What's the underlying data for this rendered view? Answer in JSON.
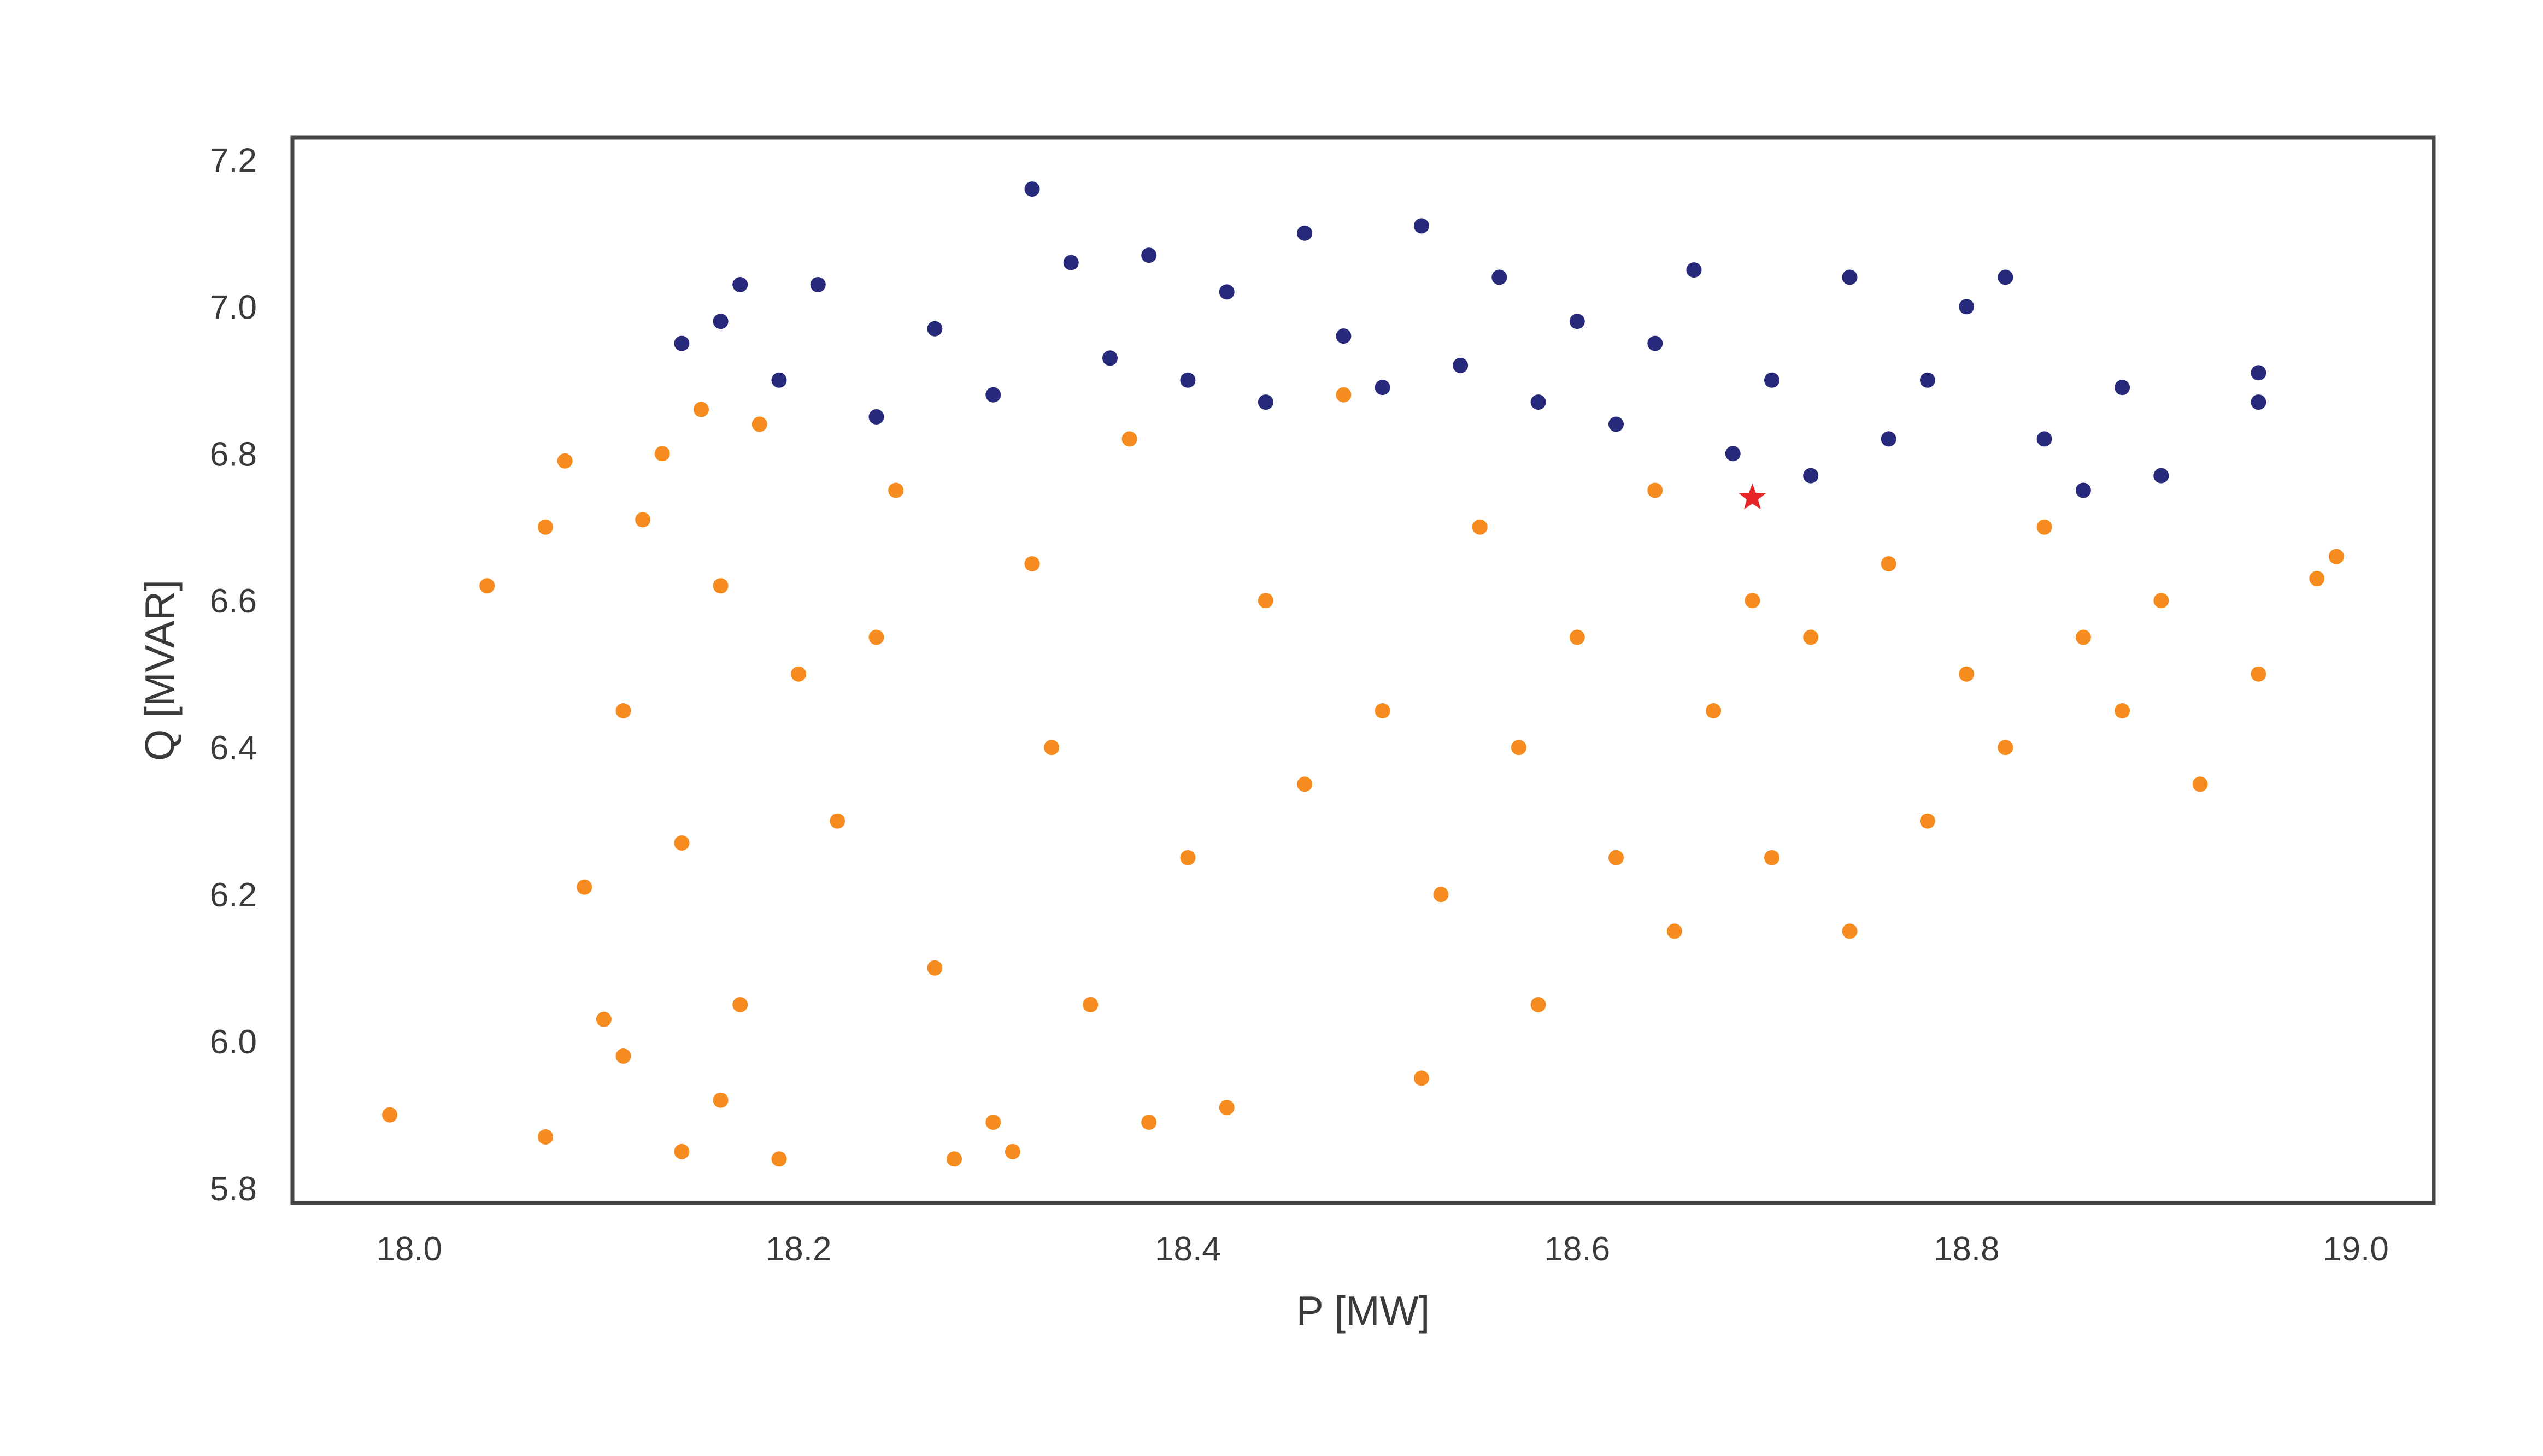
{
  "chart_data": {
    "type": "scatter",
    "title": "",
    "xlabel": "P [MW]",
    "ylabel": "Q [MVAR]",
    "xlim": [
      17.94,
      19.04
    ],
    "ylim": [
      5.78,
      7.23
    ],
    "grid": false,
    "legend": "none",
    "x_ticks": [
      18.0,
      18.2,
      18.4,
      18.6,
      18.8,
      19.0
    ],
    "x_tick_labels": [
      "18.0",
      "18.2",
      "18.4",
      "18.6",
      "18.8",
      "19.0"
    ],
    "y_ticks": [
      5.8,
      6.0,
      6.2,
      6.4,
      6.6,
      6.8,
      7.0,
      7.2
    ],
    "y_tick_labels": [
      "5.8",
      "6.0",
      "6.2",
      "6.4",
      "6.6",
      "6.8",
      "7.0",
      "7.2"
    ],
    "series": [
      {
        "color": "#f68b1f",
        "marker": "circle",
        "points": [
          [
            17.99,
            5.9
          ],
          [
            18.04,
            6.62
          ],
          [
            18.07,
            5.87
          ],
          [
            18.08,
            6.79
          ],
          [
            18.07,
            6.7
          ],
          [
            18.09,
            6.21
          ],
          [
            18.1,
            6.03
          ],
          [
            18.11,
            6.45
          ],
          [
            18.11,
            5.98
          ],
          [
            18.12,
            6.71
          ],
          [
            18.13,
            6.8
          ],
          [
            18.14,
            6.27
          ],
          [
            18.14,
            5.85
          ],
          [
            18.15,
            6.86
          ],
          [
            18.16,
            6.62
          ],
          [
            18.16,
            5.92
          ],
          [
            18.17,
            6.05
          ],
          [
            18.18,
            6.84
          ],
          [
            18.19,
            5.84
          ],
          [
            18.2,
            6.5
          ],
          [
            18.22,
            6.3
          ],
          [
            18.24,
            6.55
          ],
          [
            18.25,
            6.75
          ],
          [
            18.27,
            6.1
          ],
          [
            18.28,
            5.84
          ],
          [
            18.3,
            5.89
          ],
          [
            18.31,
            5.85
          ],
          [
            18.32,
            6.65
          ],
          [
            18.33,
            6.4
          ],
          [
            18.35,
            6.05
          ],
          [
            18.37,
            6.82
          ],
          [
            18.38,
            5.89
          ],
          [
            18.4,
            6.25
          ],
          [
            18.42,
            5.91
          ],
          [
            18.44,
            6.6
          ],
          [
            18.46,
            6.35
          ],
          [
            18.48,
            6.88
          ],
          [
            18.5,
            6.45
          ],
          [
            18.52,
            5.95
          ],
          [
            18.53,
            6.2
          ],
          [
            18.55,
            6.7
          ],
          [
            18.57,
            6.4
          ],
          [
            18.58,
            6.05
          ],
          [
            18.6,
            6.55
          ],
          [
            18.62,
            6.25
          ],
          [
            18.64,
            6.75
          ],
          [
            18.65,
            6.15
          ],
          [
            18.67,
            6.45
          ],
          [
            18.69,
            6.6
          ],
          [
            18.7,
            6.25
          ],
          [
            18.72,
            6.55
          ],
          [
            18.74,
            6.15
          ],
          [
            18.76,
            6.65
          ],
          [
            18.78,
            6.3
          ],
          [
            18.8,
            6.5
          ],
          [
            18.82,
            6.4
          ],
          [
            18.84,
            6.7
          ],
          [
            18.86,
            6.55
          ],
          [
            18.88,
            6.45
          ],
          [
            18.9,
            6.6
          ],
          [
            18.92,
            6.35
          ],
          [
            18.95,
            6.5
          ],
          [
            18.98,
            6.63
          ],
          [
            18.99,
            6.66
          ]
        ]
      },
      {
        "color": "#27297a",
        "marker": "circle",
        "points": [
          [
            18.14,
            6.95
          ],
          [
            18.16,
            6.98
          ],
          [
            18.17,
            7.03
          ],
          [
            18.19,
            6.9
          ],
          [
            18.21,
            7.03
          ],
          [
            18.24,
            6.85
          ],
          [
            18.27,
            6.97
          ],
          [
            18.3,
            6.88
          ],
          [
            18.32,
            7.16
          ],
          [
            18.34,
            7.06
          ],
          [
            18.36,
            6.93
          ],
          [
            18.38,
            7.07
          ],
          [
            18.4,
            6.9
          ],
          [
            18.42,
            7.02
          ],
          [
            18.44,
            6.87
          ],
          [
            18.46,
            7.1
          ],
          [
            18.48,
            6.96
          ],
          [
            18.5,
            6.89
          ],
          [
            18.52,
            7.11
          ],
          [
            18.54,
            6.92
          ],
          [
            18.56,
            7.04
          ],
          [
            18.58,
            6.87
          ],
          [
            18.6,
            6.98
          ],
          [
            18.62,
            6.84
          ],
          [
            18.64,
            6.95
          ],
          [
            18.66,
            7.05
          ],
          [
            18.68,
            6.8
          ],
          [
            18.7,
            6.9
          ],
          [
            18.72,
            6.77
          ],
          [
            18.74,
            7.04
          ],
          [
            18.76,
            6.82
          ],
          [
            18.78,
            6.9
          ],
          [
            18.8,
            7.0
          ],
          [
            18.82,
            7.04
          ],
          [
            18.84,
            6.82
          ],
          [
            18.86,
            6.75
          ],
          [
            18.88,
            6.89
          ],
          [
            18.9,
            6.77
          ],
          [
            18.95,
            6.91
          ],
          [
            18.95,
            6.87
          ]
        ]
      },
      {
        "color": "#e8262a",
        "marker": "star",
        "points": [
          [
            18.69,
            6.74
          ]
        ]
      }
    ]
  }
}
